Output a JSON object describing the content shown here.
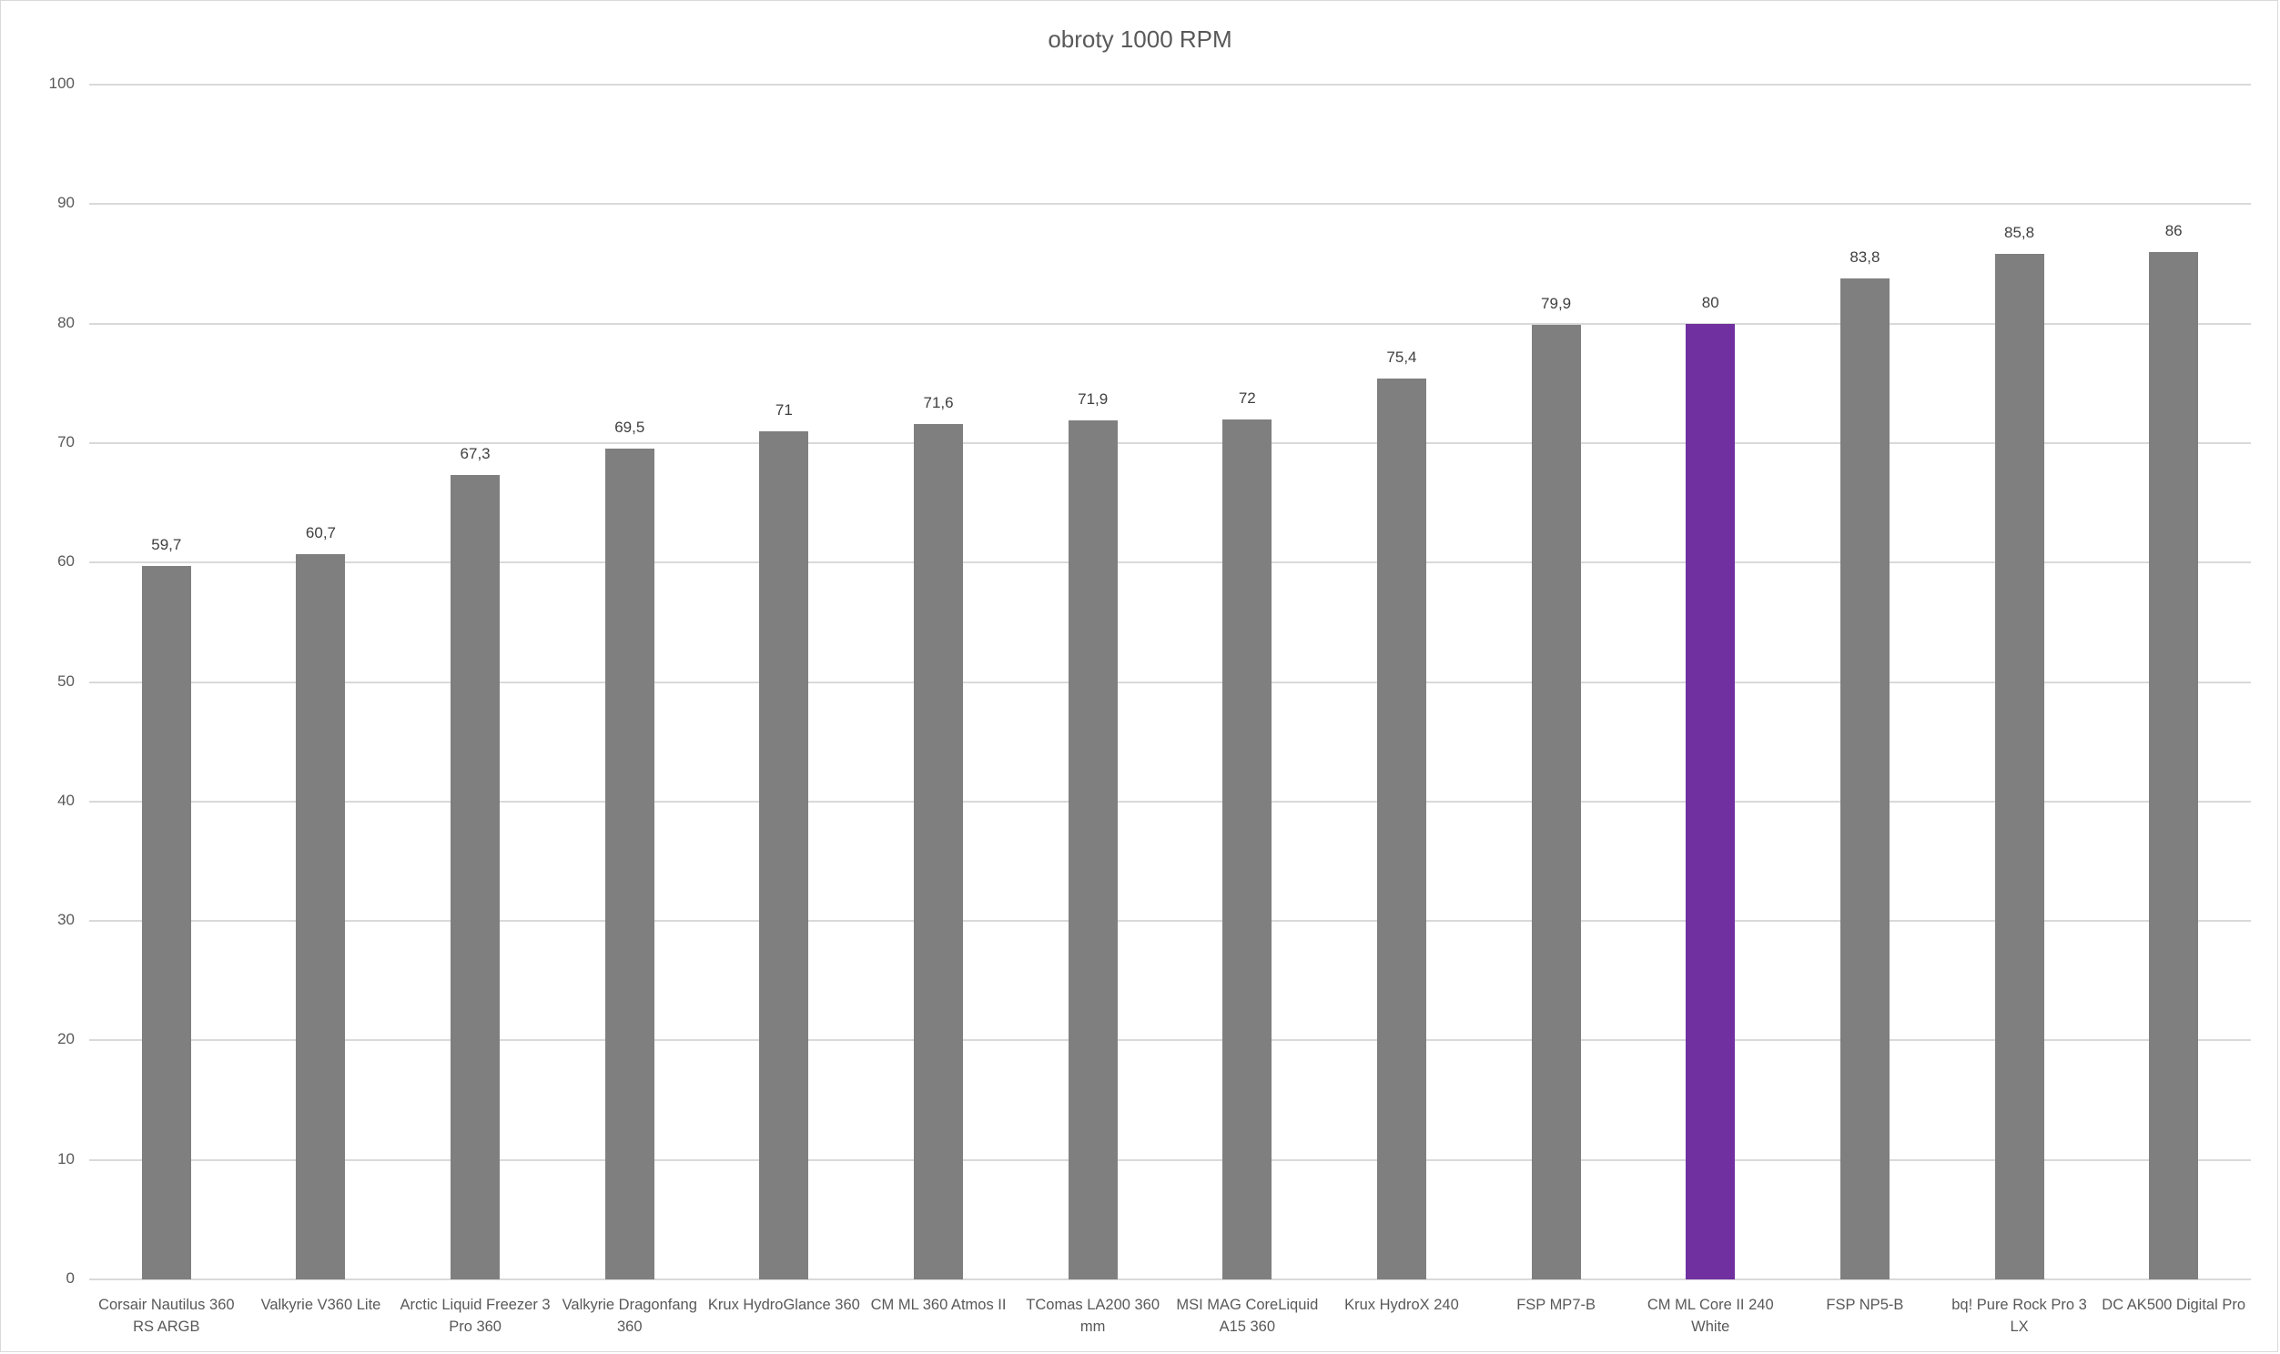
{
  "chart_data": {
    "type": "bar",
    "title": "obroty 1000 RPM",
    "xlabel": "",
    "ylabel": "",
    "ylim": [
      0,
      100
    ],
    "yticks": [
      0,
      10,
      20,
      30,
      40,
      50,
      60,
      70,
      80,
      90,
      100
    ],
    "grid": true,
    "legend": null,
    "categories": [
      "Corsair Nautilus 360 RS ARGB",
      "Valkyrie V360 Lite",
      "Arctic Liquid Freezer 3 Pro 360",
      "Valkyrie Dragonfang 360",
      "Krux HydroGlance 360",
      "CM ML 360 Atmos II",
      "TComas LA200 360 mm",
      "MSI MAG CoreLiquid A15 360",
      "Krux HydroX  240",
      "FSP MP7-B",
      "CM ML Core II 240 White",
      "FSP NP5-B",
      "bq! Pure Rock Pro 3 LX",
      "DC AK500 Digital Pro"
    ],
    "category_lines": [
      [
        "Corsair Nautilus 360",
        "RS ARGB"
      ],
      [
        "Valkyrie V360 Lite"
      ],
      [
        "Arctic Liquid Freezer 3",
        "Pro 360"
      ],
      [
        "Valkyrie Dragonfang",
        "360"
      ],
      [
        "Krux HydroGlance 360"
      ],
      [
        "CM ML 360 Atmos II"
      ],
      [
        "TComas LA200 360",
        "mm"
      ],
      [
        "MSI MAG CoreLiquid",
        "A15 360"
      ],
      [
        "Krux HydroX  240"
      ],
      [
        "FSP MP7-B"
      ],
      [
        "CM ML Core II 240",
        "White"
      ],
      [
        "FSP NP5-B"
      ],
      [
        "bq! Pure Rock Pro 3 LX"
      ],
      [
        "DC AK500 Digital Pro"
      ]
    ],
    "values": [
      59.7,
      60.7,
      67.3,
      69.5,
      71,
      71.6,
      71.9,
      72,
      75.4,
      79.9,
      80,
      83.8,
      85.8,
      86
    ],
    "value_labels": [
      "59,7",
      "60,7",
      "67,3",
      "69,5",
      "71",
      "71,6",
      "71,9",
      "72",
      "75,4",
      "79,9",
      "80",
      "83,8",
      "85,8",
      "86"
    ],
    "highlight_index": 10,
    "colors": {
      "bar": "#7f7f7f",
      "highlight": "#7030a0",
      "grid": "#d9d9d9",
      "text": "#595959"
    }
  }
}
